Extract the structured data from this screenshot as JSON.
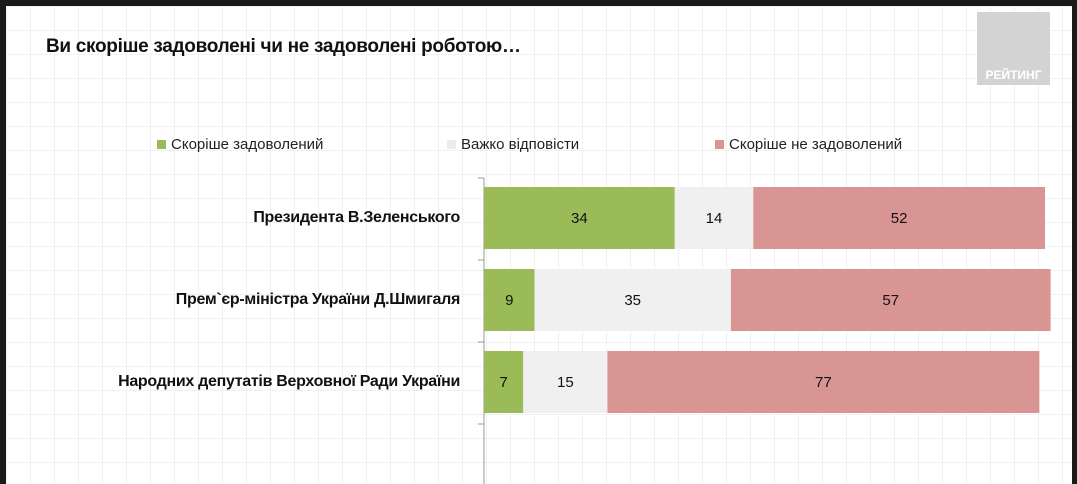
{
  "logo_text": "РЕЙТИНГ",
  "chart_data": {
    "type": "bar",
    "orientation": "horizontal",
    "stacked": true,
    "title": "Ви скоріше задоволені чи не задоволені роботою…",
    "categories": [
      "Президента В.Зеленського",
      "Прем`єр-міністра України Д.Шмигаля",
      "Народних депутатів Верховної Ради України"
    ],
    "series": [
      {
        "name": "Скоріше задоволений",
        "color": "#9bbb59",
        "values": [
          34,
          9,
          7
        ]
      },
      {
        "name": "Важко відповісти",
        "color": "#f0f0f0",
        "values": [
          14,
          35,
          15
        ]
      },
      {
        "name": "Скоріше не задоволений",
        "color": "#d99594",
        "values": [
          52,
          57,
          77
        ]
      }
    ],
    "xlim": [
      0,
      100
    ],
    "legend": "top",
    "grid": false
  }
}
